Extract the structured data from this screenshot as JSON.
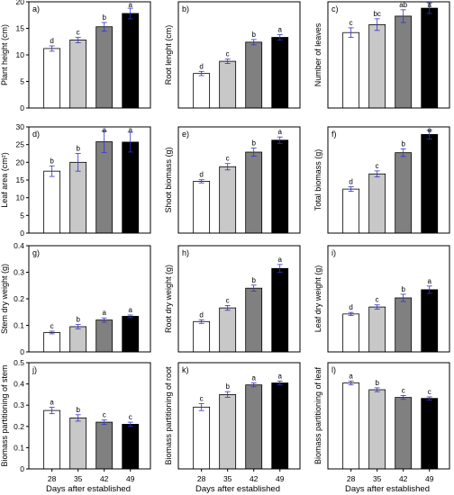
{
  "categories": [
    "28",
    "35",
    "42",
    "49"
  ],
  "x_title": "Days after established",
  "bar_colors": [
    "#ffffff",
    "#c8c8c8",
    "#808080",
    "#000000"
  ],
  "error_color": "#3333cc",
  "chart_data": [
    {
      "type": "bar",
      "panel": "a)",
      "ylabel": "Plant height (cm)",
      "ylim": [
        0,
        20
      ],
      "yticks": [
        0,
        5,
        10,
        15,
        20
      ],
      "categories": [
        "28",
        "35",
        "42",
        "49"
      ],
      "values": [
        11.2,
        12.8,
        15.3,
        17.8
      ],
      "errors": [
        0.5,
        0.5,
        0.8,
        1.0
      ],
      "letters": [
        "d",
        "c",
        "b",
        "a"
      ]
    },
    {
      "type": "bar",
      "panel": "b)",
      "ylabel": "Root lenght (cm)",
      "ylim": [
        0,
        20
      ],
      "yticks": [],
      "categories": [
        "28",
        "35",
        "42",
        "49"
      ],
      "values": [
        6.5,
        8.8,
        12.4,
        13.3
      ],
      "errors": [
        0.4,
        0.4,
        0.5,
        0.5
      ],
      "letters": [
        "d",
        "c",
        "b",
        "a"
      ]
    },
    {
      "type": "bar",
      "panel": "c)",
      "ylabel": "Number of leaves",
      "ylim": [
        0,
        20
      ],
      "yticks": [],
      "categories": [
        "28",
        "35",
        "42",
        "49"
      ],
      "values": [
        14.2,
        15.7,
        17.3,
        18.8
      ],
      "errors": [
        0.9,
        1.1,
        1.2,
        1.0
      ],
      "letters": [
        "c",
        "bc",
        "ab",
        "a"
      ]
    },
    {
      "type": "bar",
      "panel": "d)",
      "ylabel": "Leaf area (cm²)",
      "ylim": [
        0,
        30
      ],
      "yticks": [
        0,
        5,
        10,
        15,
        20,
        25,
        30
      ],
      "categories": [
        "28",
        "35",
        "42",
        "49"
      ],
      "values": [
        17.5,
        20.0,
        25.8,
        25.7
      ],
      "errors": [
        1.5,
        2.5,
        3.0,
        2.8
      ],
      "letters": [
        "b",
        "b",
        "a",
        "a"
      ]
    },
    {
      "type": "bar",
      "panel": "e)",
      "ylabel": "Shoot biomass (g)",
      "ylim": [
        0,
        0.4
      ],
      "yticks": [],
      "categories": [
        "28",
        "35",
        "42",
        "49"
      ],
      "values": [
        0.195,
        0.25,
        0.305,
        0.35
      ],
      "errors": [
        0.006,
        0.012,
        0.015,
        0.012
      ],
      "letters": [
        "d",
        "c",
        "b",
        "a"
      ]
    },
    {
      "type": "bar",
      "panel": "f)",
      "ylabel": "Total biomass (g)",
      "ylim": [
        0,
        0.7
      ],
      "yticks": [],
      "categories": [
        "28",
        "35",
        "42",
        "49"
      ],
      "values": [
        0.29,
        0.39,
        0.53,
        0.65
      ],
      "errors": [
        0.015,
        0.02,
        0.025,
        0.03
      ],
      "letters": [
        "d",
        "c",
        "b",
        "a"
      ]
    },
    {
      "type": "bar",
      "panel": "g)",
      "ylabel": "Stem dry weight (g)",
      "ylim": [
        0,
        0.4
      ],
      "yticks": [
        0,
        0.1,
        0.2,
        0.3,
        0.4
      ],
      "categories": [
        "28",
        "35",
        "42",
        "49"
      ],
      "values": [
        0.073,
        0.095,
        0.12,
        0.134
      ],
      "errors": [
        0.005,
        0.008,
        0.008,
        0.005
      ],
      "letters": [
        "c",
        "b",
        "a",
        "a"
      ]
    },
    {
      "type": "bar",
      "panel": "h)",
      "ylabel": "Root dry weight (g)",
      "ylim": [
        0,
        0.35
      ],
      "yticks": [],
      "categories": [
        "28",
        "35",
        "42",
        "49"
      ],
      "values": [
        0.1,
        0.145,
        0.21,
        0.275
      ],
      "errors": [
        0.006,
        0.008,
        0.01,
        0.013
      ],
      "letters": [
        "d",
        "c",
        "b",
        "a"
      ]
    },
    {
      "type": "bar",
      "panel": "i)",
      "ylabel": "Leaf dry weight (g)",
      "ylim": [
        0,
        0.35
      ],
      "yticks": [],
      "categories": [
        "28",
        "35",
        "42",
        "49"
      ],
      "values": [
        0.125,
        0.148,
        0.178,
        0.205
      ],
      "errors": [
        0.005,
        0.007,
        0.012,
        0.012
      ],
      "letters": [
        "d",
        "c",
        "b",
        "a"
      ]
    },
    {
      "type": "bar",
      "panel": "j)",
      "ylabel": "Biomass partitioning of stem",
      "ylim": [
        0,
        0.5
      ],
      "yticks": [
        0,
        0.1,
        0.2,
        0.3,
        0.4,
        0.5
      ],
      "categories": [
        "28",
        "35",
        "42",
        "49"
      ],
      "values": [
        0.275,
        0.24,
        0.22,
        0.21
      ],
      "errors": [
        0.015,
        0.015,
        0.01,
        0.01
      ],
      "letters": [
        "a",
        "b",
        "c",
        "c"
      ]
    },
    {
      "type": "bar",
      "panel": "k)",
      "ylabel": "Biomass partitioning of root",
      "ylim": [
        0,
        0.55
      ],
      "yticks": [],
      "categories": [
        "28",
        "35",
        "42",
        "49"
      ],
      "values": [
        0.32,
        0.385,
        0.435,
        0.445
      ],
      "errors": [
        0.018,
        0.015,
        0.01,
        0.01
      ],
      "letters": [
        "c",
        "b",
        "a",
        "a"
      ]
    },
    {
      "type": "bar",
      "panel": "l)",
      "ylabel": "Biomass partitioning of leaf",
      "ylim": [
        0,
        0.55
      ],
      "yticks": [],
      "categories": [
        "28",
        "35",
        "42",
        "49"
      ],
      "values": [
        0.445,
        0.41,
        0.37,
        0.365
      ],
      "errors": [
        0.01,
        0.01,
        0.01,
        0.008
      ],
      "letters": [
        "a",
        "b",
        "c",
        "c"
      ]
    }
  ]
}
